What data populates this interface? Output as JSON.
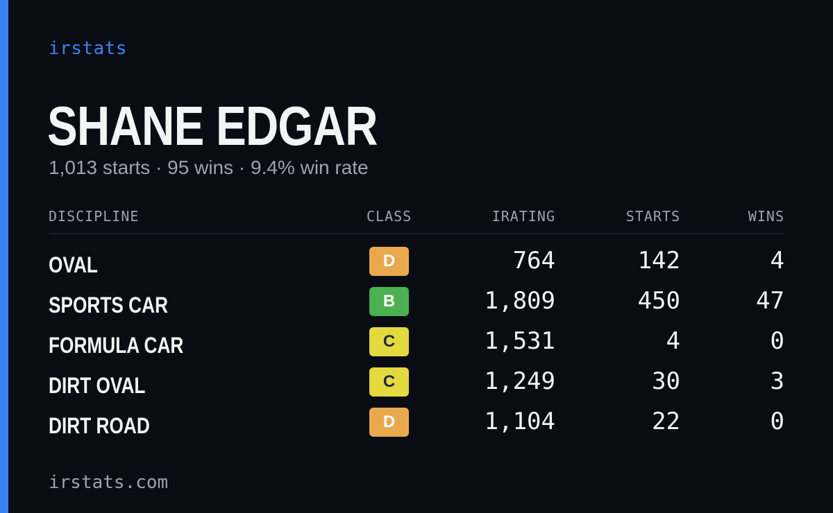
{
  "brand": "irstats",
  "driver": {
    "name": "SHANE EDGAR",
    "summary": "1,013 starts · 95 wins · 9.4% win rate"
  },
  "table": {
    "headers": {
      "discipline": "DISCIPLINE",
      "class": "CLASS",
      "irating": "IRATING",
      "starts": "STARTS",
      "wins": "WINS"
    },
    "rows": [
      {
        "discipline": "OVAL",
        "class": "D",
        "class_color": "#e9a94d",
        "irating": "764",
        "starts": "142",
        "wins": "4"
      },
      {
        "discipline": "SPORTS CAR",
        "class": "B",
        "class_color": "#4caf50",
        "irating": "1,809",
        "starts": "450",
        "wins": "47"
      },
      {
        "discipline": "FORMULA CAR",
        "class": "C",
        "class_color": "#e4d93f",
        "irating": "1,531",
        "starts": "4",
        "wins": "0"
      },
      {
        "discipline": "DIRT OVAL",
        "class": "C",
        "class_color": "#e4d93f",
        "irating": "1,249",
        "starts": "30",
        "wins": "3"
      },
      {
        "discipline": "DIRT ROAD",
        "class": "D",
        "class_color": "#e9a94d",
        "irating": "1,104",
        "starts": "22",
        "wins": "0"
      }
    ]
  },
  "footer": "irstats.com",
  "colors": {
    "background": "#0a0c13",
    "accent": "#3b82f6",
    "text_primary": "#f3f4f6",
    "text_muted": "#9ca3af"
  }
}
